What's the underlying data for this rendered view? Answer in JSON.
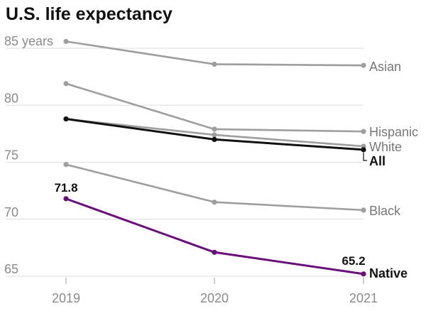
{
  "chart_data": {
    "type": "line",
    "title": "U.S. life expectancy",
    "x": [
      "2019",
      "2020",
      "2021"
    ],
    "y_ticks": [
      {
        "value": 65,
        "label": "65"
      },
      {
        "value": 70,
        "label": "70"
      },
      {
        "value": 75,
        "label": "75"
      },
      {
        "value": 80,
        "label": "80"
      },
      {
        "value": 85,
        "label": "85 years"
      }
    ],
    "ylim": [
      63.5,
      88.5
    ],
    "grid": true,
    "series": [
      {
        "name": "Asian",
        "values": [
          85.6,
          83.6,
          83.5
        ],
        "color": "#9e9e9e",
        "highlight": false
      },
      {
        "name": "Hispanic",
        "values": [
          81.9,
          77.9,
          77.7
        ],
        "color": "#9e9e9e",
        "highlight": false
      },
      {
        "name": "White",
        "values": [
          78.8,
          77.4,
          76.4
        ],
        "color": "#9e9e9e",
        "highlight": false
      },
      {
        "name": "All",
        "values": [
          78.8,
          77.0,
          76.1
        ],
        "color": "#111111",
        "highlight": true
      },
      {
        "name": "Black",
        "values": [
          74.8,
          71.5,
          70.8
        ],
        "color": "#9e9e9e",
        "highlight": false
      },
      {
        "name": "Native",
        "values": [
          71.8,
          67.1,
          65.2
        ],
        "color": "#6a0f7a",
        "highlight": true
      }
    ],
    "annotations": [
      {
        "series": "Native",
        "x": "2019",
        "text": "71.8"
      },
      {
        "series": "Native",
        "x": "2021",
        "text": "65.2"
      }
    ]
  }
}
